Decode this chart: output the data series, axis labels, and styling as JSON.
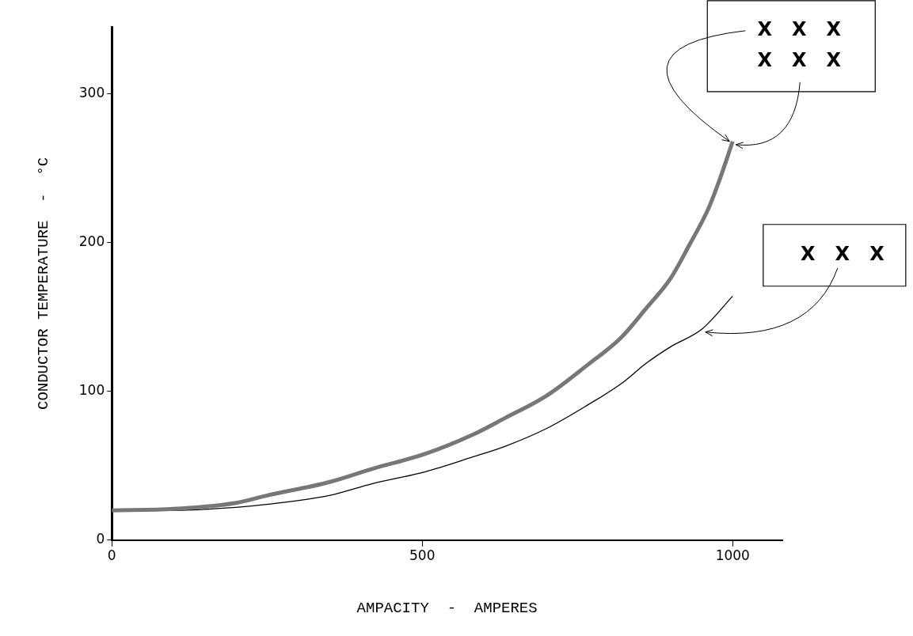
{
  "chart_data": {
    "type": "line",
    "xlabel": "AMPACITY  -  AMPERES",
    "ylabel": "CONDUCTOR TEMPERATURE  -  °C",
    "xlim": [
      0,
      1080
    ],
    "xticks": [
      0,
      500,
      1000
    ],
    "ylim": [
      0,
      345
    ],
    "yticks": [
      0,
      100,
      200,
      300
    ],
    "grid": false,
    "legend": false,
    "marker": "none",
    "line_style": "solid",
    "series": [
      {
        "color": "#777777",
        "x": [
          0,
          100,
          200,
          250,
          350,
          420,
          505,
          582,
          633,
          700,
          767,
          820,
          861,
          900,
          931,
          960,
          977,
          1000
        ],
        "values": [
          20,
          21,
          25,
          30,
          39,
          48,
          58,
          71,
          82,
          97,
          118,
          136,
          156,
          176,
          199,
          222,
          240,
          268
        ]
      },
      {
        "color": "#000000",
        "x": [
          0,
          100,
          200,
          249,
          350,
          420,
          505,
          582,
          633,
          700,
          767,
          820,
          861,
          900,
          951,
          1000
        ],
        "values": [
          20,
          20,
          22,
          24,
          30,
          38,
          46,
          56,
          63,
          75,
          91,
          105,
          119,
          130,
          142,
          164
        ]
      }
    ],
    "annotations": [
      {
        "text": "X X X\nX X X",
        "x": 1000,
        "y": 268
      },
      {
        "text": "X X X",
        "x": 951,
        "y": 142
      }
    ]
  }
}
